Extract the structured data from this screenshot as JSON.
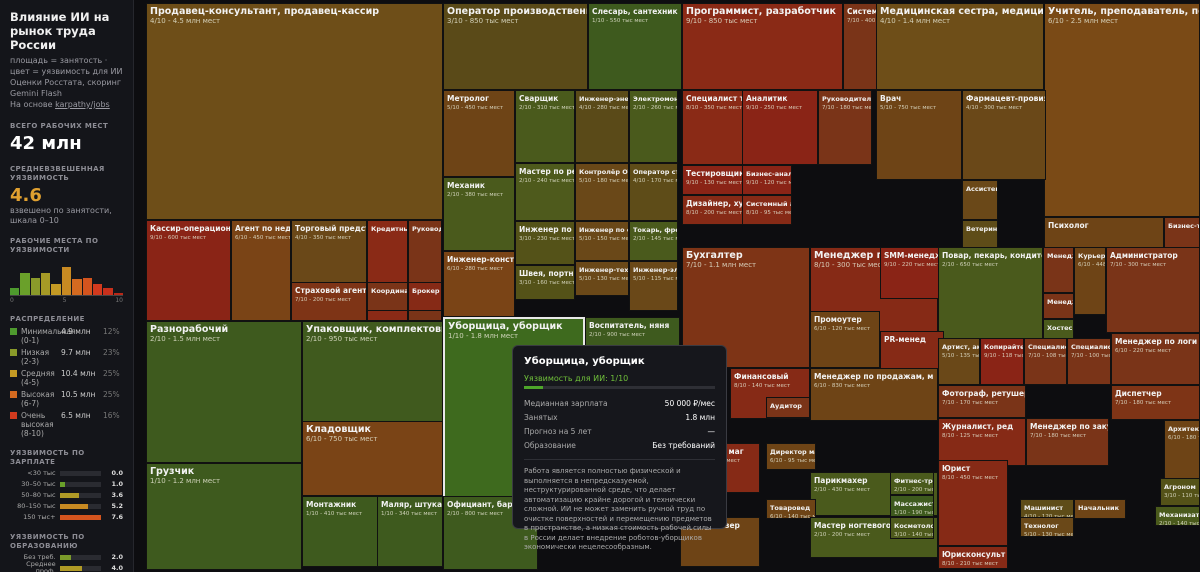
{
  "sidebar": {
    "title": "Влияние ИИ на рынок труда России",
    "description": "площадь = занятость · цвет = уязвимость для ИИ",
    "source": "Оценки Росстата, скоринг Gemini Flash",
    "basis_prefix": "На основе ",
    "basis_link": "karpathy/jobs",
    "total_heading": "ВСЕГО РАБОЧИХ МЕСТ",
    "total_value": "42 млн",
    "weighted_heading": "СРЕДНЕВЗВЕШЕННАЯ УЯЗВИМОСТЬ",
    "weighted_value": "4.6",
    "weighted_note": "взвешено по занятости, шкала 0–10",
    "histogram_heading": "РАБОЧИЕ МЕСТА ПО УЯЗВИМОСТИ",
    "histogram": [
      0.18,
      0.62,
      0.5,
      0.62,
      0.3,
      0.82,
      0.46,
      0.48,
      0.3,
      0.2,
      0.05
    ],
    "histogram_ticks": [
      "0",
      "5",
      "10"
    ],
    "distribution_heading": "РАСПРЕДЕЛЕНИЕ",
    "distribution": [
      {
        "label": "Минимальная (0-1)",
        "value": "4.9 млн",
        "pct": "12%",
        "color": "#4e9a2e"
      },
      {
        "label": "Низкая (2-3)",
        "value": "9.7 млн",
        "pct": "23%",
        "color": "#8a9a2a"
      },
      {
        "label": "Средняя (4-5)",
        "value": "10.4 млн",
        "pct": "25%",
        "color": "#c49a24"
      },
      {
        "label": "Высокая (6-7)",
        "value": "10.5 млн",
        "pct": "25%",
        "color": "#d46a20"
      },
      {
        "label": "Очень высокая (8-10)",
        "value": "6.5 млн",
        "pct": "16%",
        "color": "#d23a1e"
      }
    ],
    "salary_heading": "УЯЗВИМОСТЬ ПО ЗАРПЛАТЕ",
    "salary": [
      {
        "label": "<30 тыс",
        "value": "0.0",
        "fill": 0.0,
        "color": "#4e9a2e"
      },
      {
        "label": "30–50 тыс",
        "value": "1.0",
        "fill": 0.13,
        "color": "#6aa02a"
      },
      {
        "label": "50–80 тыс",
        "value": "3.6",
        "fill": 0.47,
        "color": "#b09a26"
      },
      {
        "label": "80–150 тыс",
        "value": "5.2",
        "fill": 0.68,
        "color": "#c88a22"
      },
      {
        "label": "150 тыс+",
        "value": "7.6",
        "fill": 1.0,
        "color": "#d4541e"
      }
    ],
    "education_heading": "УЯЗВИМОСТЬ ПО ОБРАЗОВАНИЮ",
    "education": [
      {
        "label": "Без треб.",
        "value": "2.0",
        "fill": 0.27,
        "color": "#7a9a2a"
      },
      {
        "label": "Среднее проф.",
        "value": "4.0",
        "fill": 0.55,
        "color": "#b09a26"
      },
      {
        "label": "Бакалавриат",
        "value": "7.2",
        "fill": 0.98,
        "color": "#d4541e"
      }
    ]
  },
  "treemap": [
    {
      "t": "Продавец-консультант, продавец-кассир",
      "s": "4/10 - 4.5 млн мест",
      "c": "#6e4e18"
    },
    {
      "t": "Оператор производственной линии",
      "s": "3/10 - 850 тыс мест",
      "c": "#5a4a18"
    },
    {
      "t": "Слесарь, сантехник",
      "s": "1/10 - 550 тыс мест",
      "c": "#3e5a1e"
    },
    {
      "t": "Программист, разработчик",
      "s": "9/10 - 850 тыс мест",
      "c": "#8a2a16"
    },
    {
      "t": "Системный админ",
      "s": "7/10 - 400 тыс мест",
      "c": "#7a3418"
    },
    {
      "t": "Медицинская сестра, медицинский брат",
      "s": "4/10 - 1.4 млн мест",
      "c": "#6e4e18"
    },
    {
      "t": "Учитель, преподаватель, педагог",
      "s": "6/10 - 2.5 млн мест",
      "c": "#7a4a16"
    },
    {
      "t": "Метролог",
      "s": "5/10 - 450 тыс мест",
      "c": "#6e4416"
    },
    {
      "t": "Сварщик",
      "s": "2/10 - 310 тыс мест",
      "c": "#4a5a1c"
    },
    {
      "t": "Инженер-энергет",
      "s": "4/10 - 280 тыс мест",
      "c": "#5a4a18"
    },
    {
      "t": "Электромонтаж",
      "s": "2/10 - 260 тыс мест",
      "c": "#4a5a1c"
    },
    {
      "t": "Специалист технич",
      "s": "8/10 - 350 тыс мест",
      "c": "#8a2a16"
    },
    {
      "t": "Аналитик",
      "s": "9/10 - 250 тыс мест",
      "c": "#8a2416"
    },
    {
      "t": "Руководитель про",
      "s": "7/10 - 180 тыс мест",
      "c": "#7a3418"
    },
    {
      "t": "Врач",
      "s": "5/10 - 750 тыс мест",
      "c": "#6e4416"
    },
    {
      "t": "Фармацевт-провизор",
      "s": "4/10 - 300 тыс мест",
      "c": "#6a4818"
    },
    {
      "t": "Механик",
      "s": "2/10 - 380 тыс мест",
      "c": "#4a5a1c"
    },
    {
      "t": "Мастер по ремонту",
      "s": "2/10 - 240 тыс мест",
      "c": "#4e5a1c"
    },
    {
      "t": "Контролёр ОТК",
      "s": "5/10 - 180 тыс мест",
      "c": "#6a4818"
    },
    {
      "t": "Оператор стан",
      "s": "4/10 - 170 тыс мест",
      "c": "#5e4c18"
    },
    {
      "t": "Тестировщик",
      "s": "9/10 - 130 тыс мест",
      "c": "#8a2416"
    },
    {
      "t": "Дизайнер, художн",
      "s": "8/10 - 200 тыс мест",
      "c": "#862a16"
    },
    {
      "t": "Бизнес-аналит",
      "s": "9/10 - 120 тыс мест",
      "c": "#8a2416"
    },
    {
      "t": "Ассистент",
      "s": "",
      "c": "#6a4818"
    },
    {
      "t": "Инженер по эксплу",
      "s": "3/10 - 230 тыс мест",
      "c": "#545218"
    },
    {
      "t": "Инженер по охр",
      "s": "5/10 - 150 тыс мест",
      "c": "#6a4818"
    },
    {
      "t": "Токарь, фрезер",
      "s": "2/10 - 145 тыс мест",
      "c": "#4a5a1c"
    },
    {
      "t": "Системный ан",
      "s": "8/10 - 95 тыс мест",
      "c": "#862a16"
    },
    {
      "t": "Ветеринар",
      "s": "",
      "c": "#5e4c18"
    },
    {
      "t": "Психолог",
      "s": "",
      "c": "#6e4416"
    },
    {
      "t": "Бизнес-трен",
      "s": "",
      "c": "#7a3418"
    },
    {
      "t": "Кассир-операционист",
      "s": "9/10 - 600 тыс мест",
      "c": "#8a2416"
    },
    {
      "t": "Агент по недвижим",
      "s": "6/10 - 450 тыс мест",
      "c": "#7a4416"
    },
    {
      "t": "Торговый представ",
      "s": "4/10 - 350 тыс мест",
      "c": "#6a4818"
    },
    {
      "t": "Кредитный с",
      "s": "",
      "c": "#8a2a16"
    },
    {
      "t": "Руководит",
      "s": "",
      "c": "#7a3418"
    },
    {
      "t": "Инженер-конструк",
      "s": "6/10 - 280 тыс мест",
      "c": "#7a4416"
    },
    {
      "t": "Швея, портной, заг",
      "s": "3/10 - 160 тыс мест",
      "c": "#545218"
    },
    {
      "t": "Инженер-тех",
      "s": "5/10 - 130 тыс мест",
      "c": "#6a4818"
    },
    {
      "t": "Инженер-элек",
      "s": "5/10 - 115 тыс мест",
      "c": "#6a4818"
    },
    {
      "t": "Бухгалтер",
      "s": "7/10 - 1.1 млн мест",
      "c": "#7e3416"
    },
    {
      "t": "Менеджер по мар",
      "s": "8/10 - 300 тыс мест",
      "c": "#862a16"
    },
    {
      "t": "SMM-менеджер, ко",
      "s": "9/10 - 220 тыс мест",
      "c": "#8a2416"
    },
    {
      "t": "Повар, пекарь, кондитер",
      "s": "2/10 - 650 тыс мест",
      "c": "#4a5a1c"
    },
    {
      "t": "Менеджер",
      "s": "",
      "c": "#7a3418"
    },
    {
      "t": "Курьер",
      "s": "6/10 - 448 тыс мест",
      "c": "#6e4416"
    },
    {
      "t": "Администратор",
      "s": "7/10 - 300 тыс мест",
      "c": "#7a3418"
    },
    {
      "t": "Страховой агент",
      "s": "7/10 - 200 тыс мест",
      "c": "#7e3416"
    },
    {
      "t": "Координато",
      "s": "",
      "c": "#7a3418"
    },
    {
      "t": "Брокер",
      "s": "",
      "c": "#862a16"
    },
    {
      "t": "Промоутер",
      "s": "6/10 - 120 тыс мест",
      "c": "#6e4416"
    },
    {
      "t": "Менеджер",
      "s": "",
      "c": "#7a3418"
    },
    {
      "t": "Хостес",
      "s": "",
      "c": "#4a5a1c"
    },
    {
      "t": "Разнорабочий",
      "s": "2/10 - 1.5 млн мест",
      "c": "#3e5a1e"
    },
    {
      "t": "Упаковщик, комплектовщик",
      "s": "2/10 - 950 тыс мест",
      "c": "#405a1e"
    },
    {
      "t": "Уборщица, уборщик",
      "s": "1/10 - 1.8 млн мест",
      "c": "#3e6a1e"
    },
    {
      "t": "Воспитатель, няня",
      "s": "2/10 - 900 тыс мест",
      "c": "#3e5a1e"
    },
    {
      "t": "PR-менед",
      "s": "",
      "c": "#862a16"
    },
    {
      "t": "Артист, актер",
      "s": "5/10 - 135 тыс мест",
      "c": "#6a4818"
    },
    {
      "t": "Копирайтер",
      "s": "9/10 - 118 тыс мест",
      "c": "#8a2416"
    },
    {
      "t": "Специалист",
      "s": "7/10 - 108 тыс мест",
      "c": "#7a3418"
    },
    {
      "t": "Специалист по",
      "s": "7/10 - 100 тыс мест",
      "c": "#7a3418"
    },
    {
      "t": "Менеджер по логи",
      "s": "6/10 - 220 тыс мест",
      "c": "#7a3418"
    },
    {
      "t": "Финансовый",
      "s": "8/10 - 140 тыс мест",
      "c": "#862a16"
    },
    {
      "t": "Аудитор",
      "s": "",
      "c": "#7a3418"
    },
    {
      "t": "Менеджер по продажам, м",
      "s": "6/10 - 830 тыс мест",
      "c": "#6e4416"
    },
    {
      "t": "Специалист п",
      "s": "",
      "c": "#7a3418"
    },
    {
      "t": "Диспетчер",
      "s": "7/10 - 180 тыс мест",
      "c": "#7e3416"
    },
    {
      "t": "Фотограф, ретушер",
      "s": "7/10 - 170 тыс мест",
      "c": "#7a3418"
    },
    {
      "t": "Журналист, ред",
      "s": "8/10 - 125 тыс мест",
      "c": "#862a16"
    },
    {
      "t": "Менеджер по закуп",
      "s": "7/10 - 180 тыс мест",
      "c": "#7a3418"
    },
    {
      "t": "Архитектор",
      "s": "6/10 - 180 тыс мест",
      "c": "#6e4416"
    },
    {
      "t": "Кладовщик",
      "s": "6/10 - 750 тыс мест",
      "c": "#7a4416"
    },
    {
      "t": "Грузчик",
      "s": "1/10 - 1.2 млн мест",
      "c": "#3e5a1e"
    },
    {
      "t": "Монтажник",
      "s": "1/10 - 410 тыс мест",
      "c": "#3e5a1e"
    },
    {
      "t": "Маляр, штукатур",
      "s": "1/10 - 340 тыс мест",
      "c": "#3e5a1e"
    },
    {
      "t": "Официант, барм",
      "s": "2/10 - 800 тыс мест",
      "c": "#3e5a1e"
    },
    {
      "t": "Оператор маг",
      "s": "8/10 - 110 тыс мест",
      "c": "#862a16"
    },
    {
      "t": "Директор ма",
      "s": "6/10 - 95 тыс мест",
      "c": "#6e4416"
    },
    {
      "t": "Юрист",
      "s": "8/10 - 450 тыс мест",
      "c": "#862a16"
    },
    {
      "t": "Парикмахер",
      "s": "2/10 - 430 тыс мест",
      "c": "#4a5a1c"
    },
    {
      "t": "Фитнес-тренер",
      "s": "2/10 - 200 тыс мест",
      "c": "#4a5a1c"
    },
    {
      "t": "Товаровед",
      "s": "6/10 - 140 тыс мест",
      "c": "#6e4416"
    },
    {
      "t": "Массажист",
      "s": "1/10 - 190 тыс мест",
      "c": "#3e5a1e"
    },
    {
      "t": "Машинист",
      "s": "4/10 - 120 тыс мест",
      "c": "#5e4c18"
    },
    {
      "t": "Начальник",
      "s": "",
      "c": "#6e4416"
    },
    {
      "t": "Агроном",
      "s": "3/10 - 110 тыс мест",
      "c": "#545218"
    },
    {
      "t": "Механизатор",
      "s": "2/10 - 140 тыс мест",
      "c": "#4a5a1c"
    },
    {
      "t": "Мастер ногтевого се",
      "s": "2/10 - 200 тыс мест",
      "c": "#4a5a1c"
    },
    {
      "t": "Косметолог",
      "s": "3/10 - 140 тыс мест",
      "c": "#4e5a1c"
    },
    {
      "t": "Юрисконсульт",
      "s": "8/10 - 210 тыс мест",
      "c": "#862a16"
    },
    {
      "t": "Технолог",
      "s": "5/10 - 130 тыс мест",
      "c": "#6a4818"
    },
    {
      "t": "Супервайзер",
      "s": "",
      "c": "#6e4416"
    },
    {
      "t": "агер",
      "s": "3/10 - 320 тыс мест",
      "c": "#5e4c18"
    }
  ],
  "tooltip": {
    "title": "Уборщица, уборщик",
    "score_label": "Уязвимость для ИИ: 1/10",
    "score_fraction": 0.1,
    "rows": [
      {
        "k": "Медианная зарплата",
        "v": "50 000 ₽/мес"
      },
      {
        "k": "Занятых",
        "v": "1.8 млн"
      },
      {
        "k": "Прогноз на 5 лет",
        "v": "—"
      },
      {
        "k": "Образование",
        "v": "Без требований"
      }
    ],
    "description": "Работа является полностью физической и выполняется в непредсказуемой, неструктурированной среде, что делает автоматизацию крайне дорогой и технически сложной. ИИ не может заменить ручной труд по очистке поверхностей и перемещению предметов в пространстве, а низкая стоимость рабочей силы в России делает внедрение роботов-уборщиков экономически нецелесообразным."
  }
}
